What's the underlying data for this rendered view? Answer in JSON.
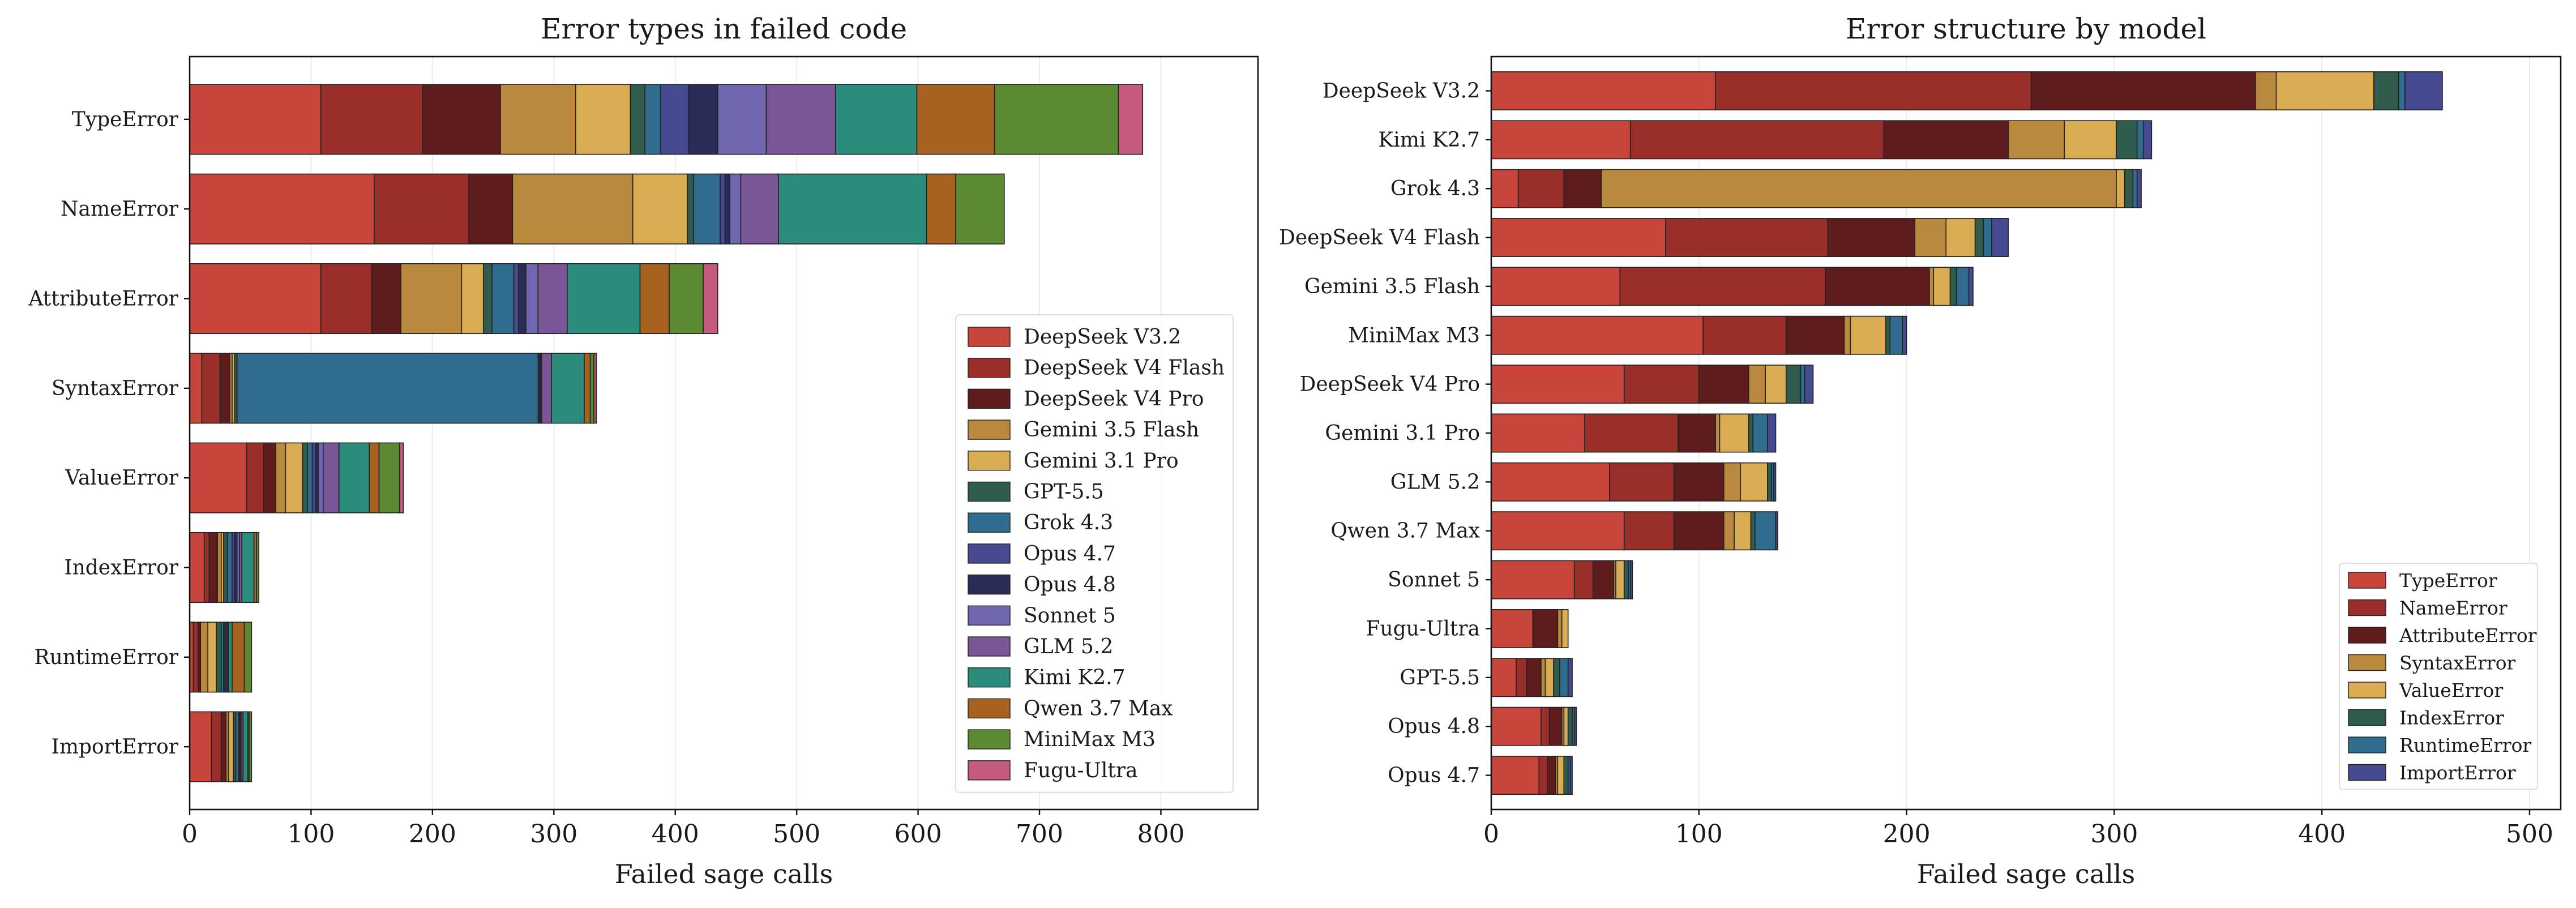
{
  "colors": {
    "DeepSeek V3.2": "#c8453b",
    "DeepSeek V4 Flash": "#9a2e2b",
    "DeepSeek V4 Pro": "#5e1c1c",
    "Gemini 3.5 Flash": "#b98a3e",
    "Gemini 3.1 Pro": "#d9ab52",
    "GPT-5.5": "#2f5c4c",
    "Grok 4.3": "#2f6c8e",
    "Opus 4.7": "#45498f",
    "Opus 4.8": "#2b2b57",
    "Sonnet 5": "#6f68b0",
    "GLM 5.2": "#7b5697",
    "Kimi K2.7": "#2b8c7c",
    "Qwen 3.7 Max": "#a8621f",
    "MiniMax M3": "#5b8a32",
    "Fugu-Ultra": "#c45a7c",
    "TypeError": "#c8453b",
    "NameError": "#9a2e2b",
    "AttributeError": "#5e1c1c",
    "SyntaxError": "#b98a3e",
    "ValueError": "#d9ab52",
    "IndexError": "#2f5c4c",
    "RuntimeError": "#2f6c8e",
    "ImportError": "#45498f"
  },
  "chart_data": [
    {
      "type": "bar",
      "orientation": "horizontal",
      "stacked": true,
      "title": "Error types in failed code",
      "xlabel": "Failed sage calls",
      "ylabel": "",
      "xlim": [
        0,
        880
      ],
      "xticks": [
        0,
        100,
        200,
        300,
        400,
        500,
        600,
        700,
        800
      ],
      "grid": "x",
      "legend": "lower-right",
      "categories": [
        "TypeError",
        "NameError",
        "AttributeError",
        "SyntaxError",
        "ValueError",
        "IndexError",
        "RuntimeError",
        "ImportError"
      ],
      "series": [
        {
          "name": "DeepSeek V3.2",
          "values": [
            108,
            152,
            108,
            10,
            47,
            12,
            3,
            18
          ]
        },
        {
          "name": "DeepSeek V4 Flash",
          "values": [
            84,
            78,
            42,
            15,
            14,
            4,
            4,
            8
          ]
        },
        {
          "name": "DeepSeek V4 Pro",
          "values": [
            64,
            36,
            24,
            8,
            10,
            7,
            2,
            4
          ]
        },
        {
          "name": "Gemini 3.5 Flash",
          "values": [
            62,
            99,
            50,
            2,
            8,
            3,
            6,
            2
          ]
        },
        {
          "name": "Gemini 3.1 Pro",
          "values": [
            45,
            45,
            18,
            2,
            14,
            2,
            7,
            4
          ]
        },
        {
          "name": "GPT-5.5",
          "values": [
            12,
            5,
            7,
            2,
            4,
            3,
            4,
            2
          ]
        },
        {
          "name": "Grok 4.3",
          "values": [
            13,
            22,
            18,
            248,
            4,
            4,
            2,
            2
          ]
        },
        {
          "name": "Opus 4.7",
          "values": [
            23,
            4,
            4,
            1,
            3,
            2,
            1,
            1
          ]
        },
        {
          "name": "Opus 4.8",
          "values": [
            24,
            4,
            6,
            1,
            2,
            2,
            1,
            1
          ]
        },
        {
          "name": "Sonnet 5",
          "values": [
            40,
            9,
            10,
            1,
            4,
            2,
            1,
            1
          ]
        },
        {
          "name": "GLM 5.2",
          "values": [
            57,
            31,
            24,
            8,
            13,
            2,
            1,
            1
          ]
        },
        {
          "name": "Kimi K2.7",
          "values": [
            67,
            122,
            60,
            27,
            25,
            10,
            3,
            4
          ]
        },
        {
          "name": "Qwen 3.7 Max",
          "values": [
            64,
            24,
            24,
            5,
            8,
            2,
            10,
            1
          ]
        },
        {
          "name": "MiniMax M3",
          "values": [
            102,
            40,
            28,
            3,
            17,
            2,
            6,
            2
          ]
        },
        {
          "name": "Fugu-Ultra",
          "values": [
            20,
            0,
            12,
            2,
            3,
            0,
            0,
            0
          ]
        }
      ]
    },
    {
      "type": "bar",
      "orientation": "horizontal",
      "stacked": true,
      "title": "Error structure by model",
      "xlabel": "Failed sage calls",
      "ylabel": "",
      "xlim": [
        0,
        515
      ],
      "xticks": [
        0,
        100,
        200,
        300,
        400,
        500
      ],
      "grid": "x",
      "legend": "lower-right",
      "categories": [
        "DeepSeek V3.2",
        "Kimi K2.7",
        "Grok 4.3",
        "DeepSeek V4 Flash",
        "Gemini 3.5 Flash",
        "MiniMax M3",
        "DeepSeek V4 Pro",
        "Gemini 3.1 Pro",
        "GLM 5.2",
        "Qwen 3.7 Max",
        "Sonnet 5",
        "Fugu-Ultra",
        "GPT-5.5",
        "Opus 4.8",
        "Opus 4.7"
      ],
      "series": [
        {
          "name": "TypeError",
          "values": [
            108,
            67,
            13,
            84,
            62,
            102,
            64,
            45,
            57,
            64,
            40,
            20,
            12,
            24,
            23
          ]
        },
        {
          "name": "NameError",
          "values": [
            152,
            122,
            22,
            78,
            99,
            40,
            36,
            45,
            31,
            24,
            9,
            0,
            5,
            4,
            4
          ]
        },
        {
          "name": "AttributeError",
          "values": [
            108,
            60,
            18,
            42,
            50,
            28,
            24,
            18,
            24,
            24,
            10,
            12,
            7,
            6,
            4
          ]
        },
        {
          "name": "SyntaxError",
          "values": [
            10,
            27,
            248,
            15,
            2,
            3,
            8,
            2,
            8,
            5,
            1,
            2,
            2,
            1,
            1
          ]
        },
        {
          "name": "ValueError",
          "values": [
            47,
            25,
            4,
            14,
            8,
            17,
            10,
            14,
            13,
            8,
            4,
            3,
            4,
            2,
            3
          ]
        },
        {
          "name": "IndexError",
          "values": [
            12,
            10,
            4,
            4,
            3,
            2,
            7,
            2,
            2,
            2,
            2,
            0,
            3,
            2,
            2
          ]
        },
        {
          "name": "RuntimeError",
          "values": [
            3,
            3,
            2,
            4,
            6,
            6,
            2,
            7,
            1,
            10,
            1,
            0,
            4,
            1,
            1
          ]
        },
        {
          "name": "ImportError",
          "values": [
            18,
            4,
            2,
            8,
            2,
            2,
            4,
            4,
            1,
            1,
            1,
            0,
            2,
            1,
            1
          ]
        }
      ]
    }
  ]
}
